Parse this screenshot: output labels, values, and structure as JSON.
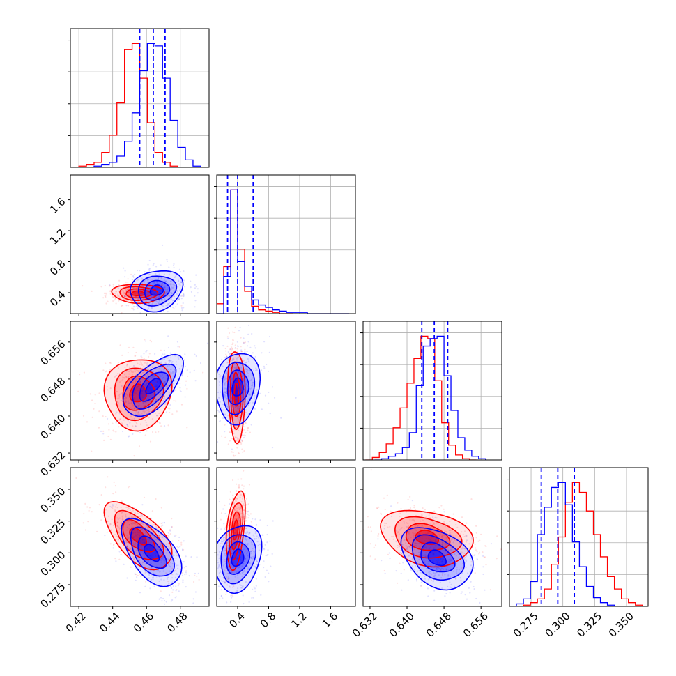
{
  "chart_data": {
    "type": "corner",
    "grid": true,
    "colors": {
      "series_a": "#ff0000",
      "series_b": "#0000ff",
      "frame": "#000000",
      "grid": "#b0b0b0"
    },
    "series": [
      {
        "color_key": "series_a"
      },
      {
        "color_key": "series_b"
      }
    ],
    "parameters": [
      {
        "range": [
          0.415,
          0.497
        ],
        "ticks": [
          0.42,
          0.44,
          0.46,
          0.48
        ],
        "tick_labels": [
          "0.42",
          "0.44",
          "0.46",
          "0.48"
        ],
        "quantiles": [
          0.456,
          0.464,
          0.471
        ]
      },
      {
        "range": [
          0.13,
          1.92
        ],
        "ticks": [
          0.4,
          0.8,
          1.2,
          1.6
        ],
        "tick_labels": [
          "0.4",
          "0.8",
          "1.2",
          "1.6"
        ],
        "quantiles": [
          0.27,
          0.4,
          0.6
        ]
      },
      {
        "range": [
          0.6305,
          0.6605
        ],
        "ticks": [
          0.632,
          0.64,
          0.648,
          0.656
        ],
        "tick_labels": [
          "0.632",
          "0.640",
          "0.648",
          "0.656"
        ],
        "quantiles": [
          0.6432,
          0.6459,
          0.6488
        ]
      },
      {
        "range": [
          0.258,
          0.367
        ],
        "ticks": [
          0.275,
          0.3,
          0.325,
          0.35
        ],
        "tick_labels": [
          "0.275",
          "0.300",
          "0.325",
          "0.350"
        ],
        "quantiles": [
          0.283,
          0.296,
          0.309
        ]
      }
    ],
    "hist_a": [
      {
        "edges": [
          0.4155,
          0.42,
          0.4245,
          0.429,
          0.4335,
          0.438,
          0.4425,
          0.447,
          0.4515,
          0.456,
          0.4605,
          0.465,
          0.4695,
          0.474,
          0.4785,
          0.483,
          0.4875
        ],
        "heights": [
          0,
          1,
          2,
          4,
          12,
          26,
          52,
          95,
          100,
          72,
          36,
          12,
          4,
          1,
          0,
          0
        ]
      },
      {
        "edges": [
          0.13,
          0.22,
          0.31,
          0.4,
          0.49,
          0.58,
          0.67,
          0.76,
          0.85,
          0.94,
          1.03,
          1.12
        ],
        "heights": [
          8,
          38,
          100,
          52,
          18,
          6,
          3,
          2,
          1,
          0,
          0
        ]
      },
      {
        "edges": [
          0.631,
          0.6325,
          0.634,
          0.6355,
          0.637,
          0.6385,
          0.64,
          0.6415,
          0.643,
          0.6445,
          0.646,
          0.6475,
          0.649,
          0.6505,
          0.652,
          0.6535,
          0.655
        ],
        "heights": [
          0,
          2,
          6,
          13,
          26,
          42,
          62,
          82,
          100,
          98,
          64,
          30,
          12,
          4,
          1,
          0
        ]
      },
      {
        "edges": [
          0.258,
          0.2635,
          0.269,
          0.2745,
          0.28,
          0.2855,
          0.291,
          0.2965,
          0.302,
          0.3075,
          0.313,
          0.3185,
          0.324,
          0.3295,
          0.335,
          0.3405,
          0.346,
          0.3515,
          0.357,
          0.3625
        ],
        "heights": [
          0,
          0,
          1,
          3,
          6,
          14,
          34,
          56,
          84,
          100,
          92,
          77,
          58,
          40,
          24,
          14,
          6,
          3,
          1
        ]
      }
    ],
    "hist_b": [
      {
        "edges": [
          0.4245,
          0.429,
          0.4335,
          0.438,
          0.4425,
          0.447,
          0.4515,
          0.456,
          0.4605,
          0.465,
          0.4695,
          0.474,
          0.4785,
          0.483,
          0.4875,
          0.492,
          0.4965
        ],
        "heights": [
          0,
          1,
          2,
          4,
          9,
          21,
          44,
          78,
          100,
          98,
          72,
          38,
          16,
          6,
          1,
          0
        ]
      },
      {
        "edges": [
          0.13,
          0.22,
          0.31,
          0.4,
          0.49,
          0.58,
          0.67,
          0.76,
          0.85,
          0.94,
          1.03,
          1.12,
          1.21,
          1.3,
          1.39,
          1.48,
          1.57,
          1.66,
          1.75,
          1.84
        ],
        "heights": [
          0,
          30,
          100,
          42,
          22,
          11,
          7,
          5,
          3,
          2,
          1,
          1,
          1,
          0,
          0,
          0,
          0,
          0,
          0
        ]
      },
      {
        "edges": [
          0.633,
          0.6345,
          0.636,
          0.6375,
          0.639,
          0.6405,
          0.642,
          0.6435,
          0.645,
          0.6465,
          0.648,
          0.6495,
          0.651,
          0.6525,
          0.654,
          0.6555,
          0.657
        ],
        "heights": [
          0,
          1,
          3,
          5,
          10,
          22,
          60,
          92,
          98,
          100,
          68,
          40,
          18,
          8,
          3,
          1
        ]
      },
      {
        "edges": [
          0.258,
          0.2635,
          0.269,
          0.2745,
          0.28,
          0.2855,
          0.291,
          0.2965,
          0.302,
          0.3075,
          0.313,
          0.3185,
          0.324,
          0.3295,
          0.335,
          0.3405,
          0.346
        ],
        "heights": [
          0,
          2,
          6,
          20,
          58,
          80,
          96,
          100,
          82,
          52,
          32,
          16,
          7,
          3,
          1,
          0
        ]
      }
    ],
    "joint_a": [
      {
        "pair": [
          1,
          0
        ],
        "mean": [
          0.455,
          0.39
        ],
        "sd": [
          0.007,
          0.055
        ],
        "rho": -0.05
      },
      {
        "pair": [
          2,
          0
        ],
        "mean": [
          0.455,
          0.6449
        ],
        "sd": [
          0.009,
          0.0035
        ],
        "rho": 0.05
      },
      {
        "pair": [
          2,
          1
        ],
        "mean": [
          0.385,
          0.6445
        ],
        "sd": [
          0.05,
          0.0045
        ],
        "rho": -0.1
      },
      {
        "pair": [
          3,
          0
        ],
        "mean": [
          0.455,
          0.313
        ],
        "sd": [
          0.009,
          0.012
        ],
        "rho": -0.6
      },
      {
        "pair": [
          3,
          1
        ],
        "mean": [
          0.375,
          0.318
        ],
        "sd": [
          0.055,
          0.014
        ],
        "rho": 0.4
      },
      {
        "pair": [
          3,
          2
        ],
        "mean": [
          0.6443,
          0.312
        ],
        "sd": [
          0.0045,
          0.01
        ],
        "rho": -0.25
      }
    ],
    "joint_b": [
      {
        "pair": [
          1,
          0
        ],
        "mean": [
          0.466,
          0.43
        ],
        "sd": [
          0.007,
          0.12
        ],
        "rho": 0.15
      },
      {
        "pair": [
          2,
          0
        ],
        "mean": [
          0.464,
          0.6465
        ],
        "sd": [
          0.008,
          0.003
        ],
        "rho": 0.6
      },
      {
        "pair": [
          2,
          1
        ],
        "mean": [
          0.4,
          0.6462
        ],
        "sd": [
          0.13,
          0.0035
        ],
        "rho": 0.1
      },
      {
        "pair": [
          3,
          0
        ],
        "mean": [
          0.463,
          0.3
        ],
        "sd": [
          0.008,
          0.012
        ],
        "rho": -0.55
      },
      {
        "pair": [
          3,
          1
        ],
        "mean": [
          0.4,
          0.296
        ],
        "sd": [
          0.14,
          0.012
        ],
        "rho": 0.2
      },
      {
        "pair": [
          3,
          2
        ],
        "mean": [
          0.6465,
          0.296
        ],
        "sd": [
          0.0035,
          0.011
        ],
        "rho": -0.35
      }
    ]
  }
}
